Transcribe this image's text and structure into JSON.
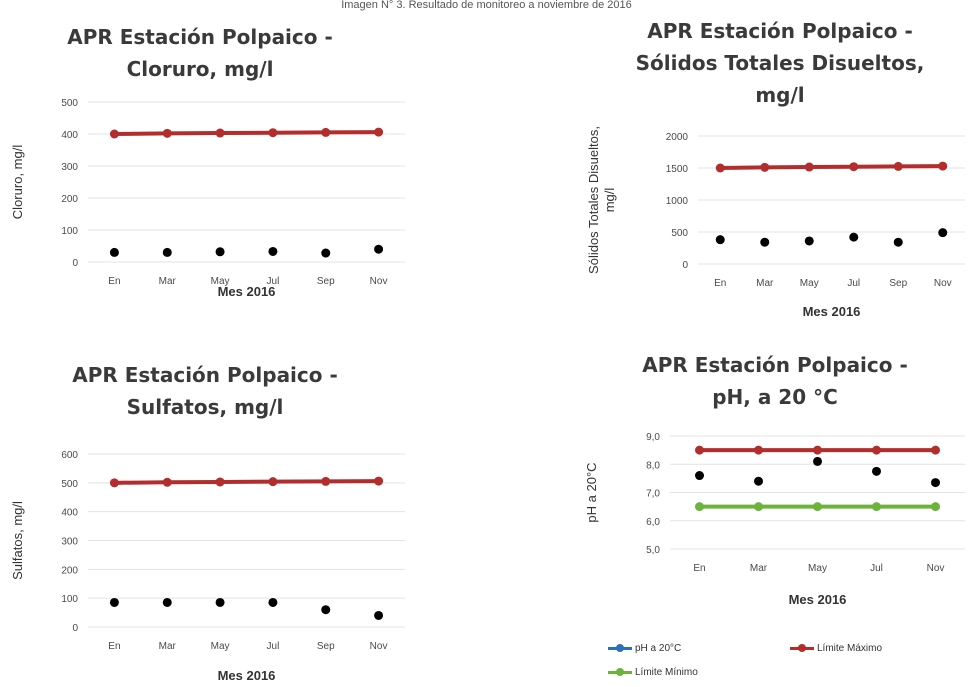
{
  "caption": "Imagen N° 3. Resultado de monitoreo a noviembre de 2016",
  "colors": {
    "series": "#2e6fb7",
    "max": "#b32d2d",
    "min": "#6bb33a",
    "grid": "#e3e3e3"
  },
  "chart_data": [
    {
      "type": "line",
      "title_lines": [
        "APR  Estación Polpaico  -",
        "Cloruro, mg/l"
      ],
      "ylabel_lines": [
        "Cloruro, mg/l"
      ],
      "xlabel": "Mes 2016",
      "categories": [
        "En",
        "Mar",
        "May",
        "Jul",
        "Sep",
        "Nov"
      ],
      "ylim": [
        0,
        500
      ],
      "yticks": [
        "0",
        "100",
        "200",
        "300",
        "400",
        "500"
      ],
      "grid": true,
      "series": [
        {
          "key": "value",
          "values": [
            30,
            30,
            32,
            33,
            28,
            40
          ]
        },
        {
          "key": "max",
          "values": [
            400,
            402,
            403,
            404,
            405,
            406
          ]
        }
      ]
    },
    {
      "type": "line",
      "title_lines": [
        "APR  Estación Polpaico  -",
        "Sólidos Totales Disueltos,",
        "mg/l"
      ],
      "ylabel_lines": [
        "Sólidos Totales Disueltos,",
        "mg/l"
      ],
      "xlabel": "Mes 2016",
      "categories": [
        "En",
        "Mar",
        "May",
        "Jul",
        "Sep",
        "Nov"
      ],
      "ylim": [
        0,
        2000
      ],
      "yticks": [
        "0",
        "500",
        "1000",
        "1500",
        "2000"
      ],
      "grid": true,
      "series": [
        {
          "key": "value",
          "values": [
            380,
            340,
            360,
            420,
            340,
            490
          ]
        },
        {
          "key": "max",
          "values": [
            1500,
            1510,
            1515,
            1520,
            1525,
            1530
          ]
        }
      ]
    },
    {
      "type": "line",
      "title_lines": [
        "APR  Estación Polpaico  -",
        "Sulfatos, mg/l"
      ],
      "ylabel_lines": [
        "Sulfatos, mg/l"
      ],
      "xlabel": "Mes 2016",
      "categories": [
        "En",
        "Mar",
        "May",
        "Jul",
        "Sep",
        "Nov"
      ],
      "ylim": [
        0,
        600
      ],
      "yticks": [
        "0",
        "100",
        "200",
        "300",
        "400",
        "500",
        "600"
      ],
      "grid": true,
      "series": [
        {
          "key": "value",
          "values": [
            85,
            85,
            85,
            85,
            60,
            40
          ]
        },
        {
          "key": "max",
          "values": [
            500,
            502,
            503,
            504,
            505,
            506
          ]
        }
      ]
    },
    {
      "type": "line",
      "title_lines": [
        "APR  Estación Polpaico  -",
        "pH, a 20 °C"
      ],
      "ylabel_lines": [
        "pH a 20°C"
      ],
      "xlabel": "Mes 2016",
      "categories": [
        "En",
        "Mar",
        "May",
        "Jul",
        "Nov"
      ],
      "ylim": [
        5,
        9
      ],
      "yticks": [
        "5,0",
        "6,0",
        "7,0",
        "8,0",
        "9,0"
      ],
      "grid": true,
      "legend": "bottom",
      "series": [
        {
          "key": "value",
          "name": "pH a 20°C",
          "values": [
            7.6,
            7.4,
            8.1,
            7.75,
            7.35
          ]
        },
        {
          "key": "max",
          "name": "Límite Máximo",
          "values": [
            8.5,
            8.5,
            8.5,
            8.5,
            8.5
          ]
        },
        {
          "key": "min",
          "name": "Límite Mínimo",
          "values": [
            6.5,
            6.5,
            6.5,
            6.5,
            6.5
          ]
        }
      ]
    }
  ],
  "legend_items": [
    {
      "name": "pH a 20°C",
      "key": "value"
    },
    {
      "name": "Límite Máximo",
      "key": "max"
    },
    {
      "name": "Límite Mínimo",
      "key": "min"
    }
  ]
}
